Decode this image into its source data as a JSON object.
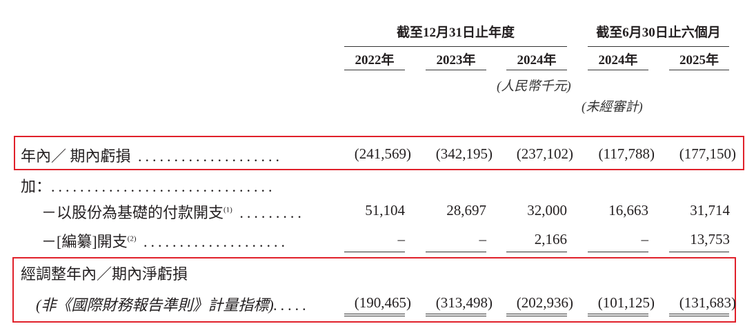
{
  "header": {
    "group_annual": "截至12月31日止年度",
    "group_interim": "截至6月30日止六個月",
    "years": [
      "2022年",
      "2023年",
      "2024年",
      "2024年",
      "2025年"
    ],
    "currency_note": "(人民幣千元)",
    "unaudited_note": "(未經審計)"
  },
  "rows": [
    {
      "label": "年內／ 期內虧損",
      "values": [
        "(241,569)",
        "(342,195)",
        "(237,102)",
        "(117,788)",
        "(177,150)"
      ]
    },
    {
      "label": "加：",
      "values": []
    },
    {
      "label": "－以股份為基礎的付款開支",
      "note": "(1)",
      "values": [
        "51,104",
        "28,697",
        "32,000",
        "16,663",
        "31,714"
      ]
    },
    {
      "label": "－[編纂]開支",
      "note": "(2)",
      "values": [
        "–",
        "–",
        "2,166",
        "–",
        "13,753"
      ]
    },
    {
      "label": "經調整年內／期內淨虧損",
      "label2": "(非《國際財務報告準則》計量指標)",
      "values": [
        "(190,465)",
        "(313,498)",
        "(202,936)",
        "(101,125)",
        "(131,683)"
      ]
    }
  ],
  "colors": {
    "highlight_box": "#e0202a",
    "text": "#231f20"
  }
}
